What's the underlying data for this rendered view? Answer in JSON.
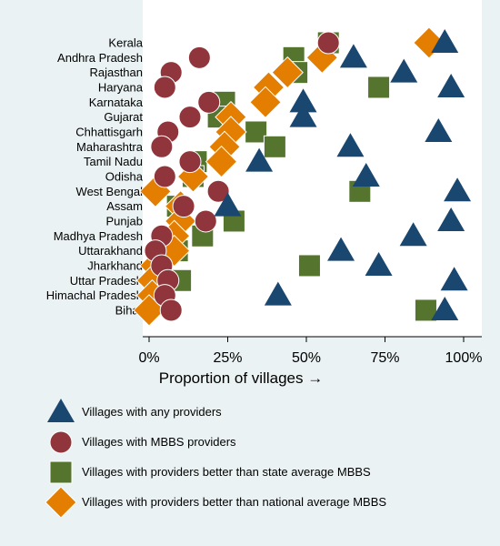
{
  "chart_data": {
    "type": "scatter",
    "xlabel": "Proportion of villages →",
    "xlim": [
      0,
      100
    ],
    "xticks": [
      0,
      25,
      50,
      75,
      100
    ],
    "xtick_labels": [
      "0%",
      "25%",
      "50%",
      "75%",
      "100%"
    ],
    "grid": false,
    "legend_position": "bottom",
    "categories": [
      "Kerala",
      "Andhra Pradesh",
      "Rajasthan",
      "Haryana",
      "Karnataka",
      "Gujarat",
      "Chhattisgarh",
      "Maharashtra",
      "Tamil Nadu",
      "Odisha",
      "West Bengal",
      "Assam",
      "Punjab",
      "Madhya Pradesh",
      "Uttarakhand",
      "Jharkhand",
      "Uttar Pradesh",
      "Himachal Pradesh",
      "Bihar"
    ],
    "series": [
      {
        "name": "Villages with any providers",
        "marker": "triangle",
        "color": "#1a476f",
        "values": [
          94,
          65,
          81,
          96,
          49,
          49,
          92,
          64,
          35,
          69,
          98,
          25,
          96,
          84,
          61,
          73,
          97,
          41,
          94
        ]
      },
      {
        "name": "Villages with MBBS providers",
        "marker": "circle",
        "color": "#90353b",
        "values": [
          57,
          16,
          7,
          5,
          19,
          13,
          6,
          4,
          13,
          5,
          22,
          11,
          18,
          4,
          2,
          4,
          6,
          5,
          7
        ]
      },
      {
        "name": "Villages with providers better than state average MBBS",
        "marker": "square",
        "color": "#55752f",
        "values": [
          57,
          46,
          47,
          73,
          24,
          22,
          34,
          40,
          15,
          14,
          67,
          9,
          27,
          17,
          9,
          51,
          10,
          2,
          88
        ]
      },
      {
        "name": "Villages with providers better than national average MBBS",
        "marker": "diamond",
        "color": "#e37e00",
        "values": [
          89,
          55,
          44,
          38,
          37,
          26,
          26,
          24,
          23,
          14,
          2,
          10,
          10,
          8,
          8,
          2,
          1,
          1,
          0
        ]
      }
    ]
  }
}
